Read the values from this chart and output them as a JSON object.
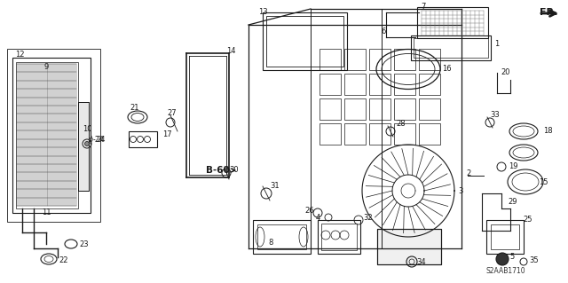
{
  "bg_color": "#ffffff",
  "line_color": "#1a1a1a",
  "figsize": [
    6.4,
    3.19
  ],
  "dpi": 100,
  "diagram_code": "S2AAB1710",
  "fr_label": "FR.",
  "b60_label": "B-60",
  "gray": "#888888",
  "darkgray": "#555555"
}
